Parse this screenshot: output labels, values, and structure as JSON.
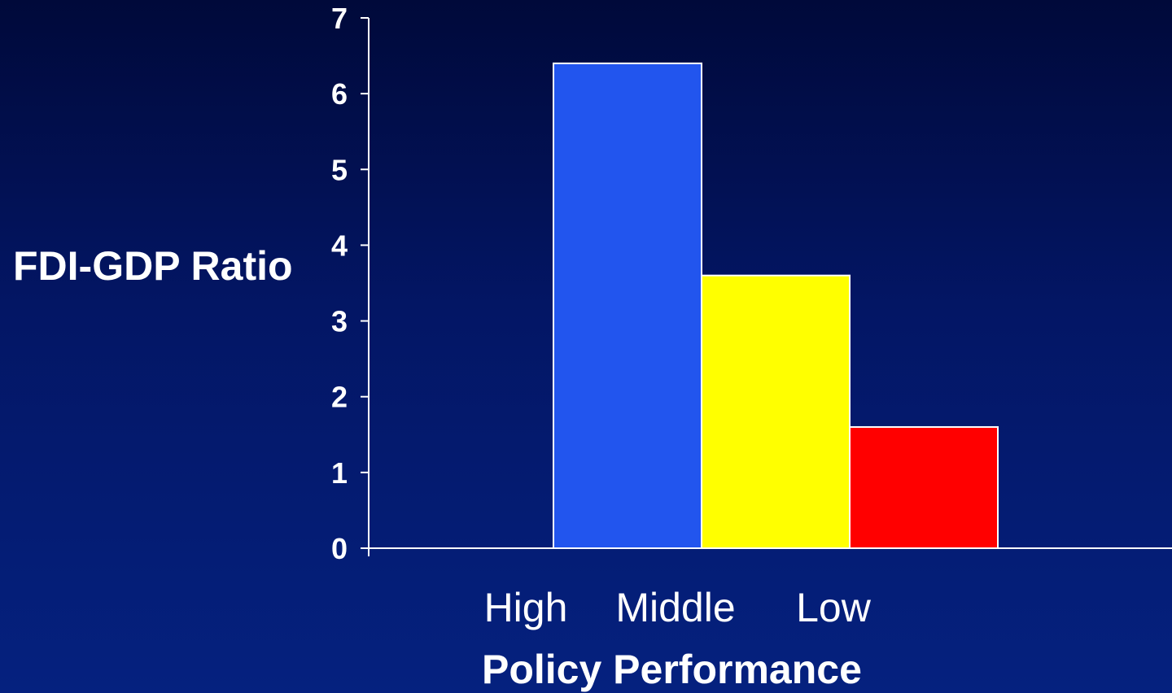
{
  "chart_data": {
    "type": "bar",
    "categories": [
      "High",
      "Middle",
      "Low"
    ],
    "values": [
      6.4,
      3.6,
      1.6
    ],
    "colors": [
      "#2255ee",
      "#ffff00",
      "#ff0000"
    ],
    "title": "",
    "xlabel": "Policy Performance",
    "ylabel": "FDI-GDP Ratio",
    "ylim": [
      0,
      7
    ],
    "yticks": [
      "0",
      "1",
      "2",
      "3",
      "4",
      "5",
      "6",
      "7"
    ],
    "grid": false,
    "legend": "none"
  }
}
